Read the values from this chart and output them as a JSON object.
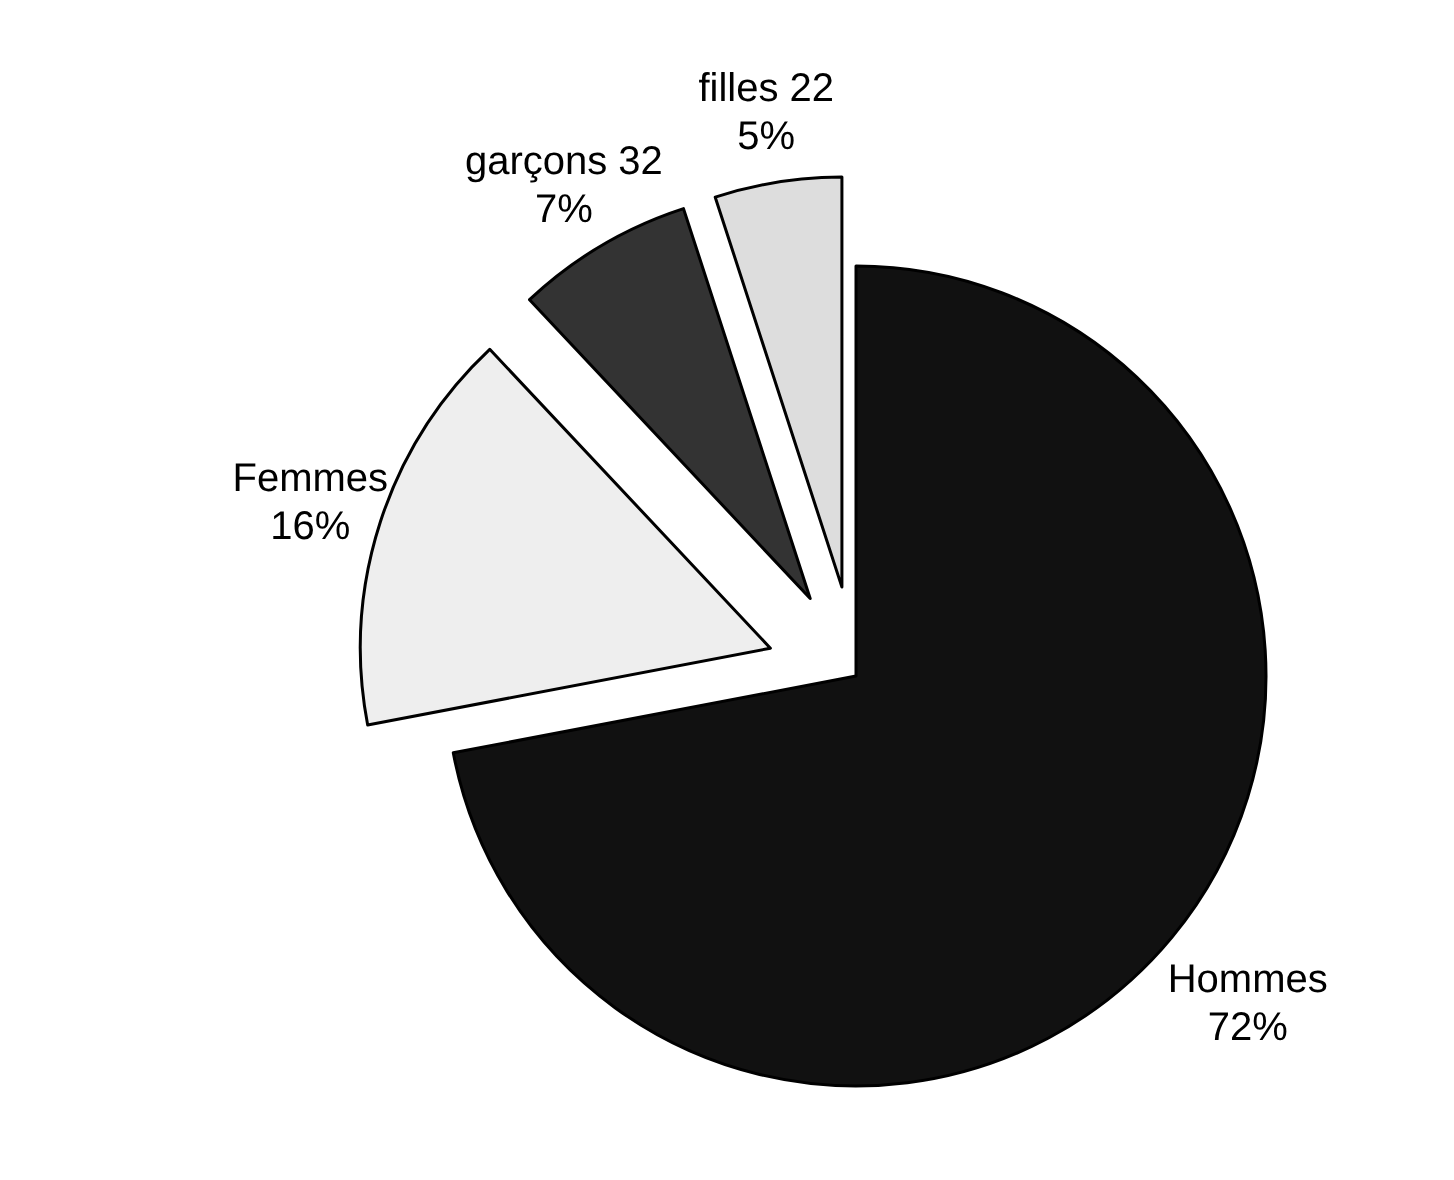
{
  "chart_data": {
    "type": "pie",
    "categories": [
      "Hommes",
      "Femmes",
      "garçons 32",
      "filles 22"
    ],
    "values": [
      72,
      16,
      7,
      5
    ],
    "colors": [
      "#111111",
      "#eeeeee",
      "#333333",
      "#dddddd"
    ],
    "value_labels": [
      "72%",
      "16%",
      "7%",
      "5%"
    ]
  }
}
